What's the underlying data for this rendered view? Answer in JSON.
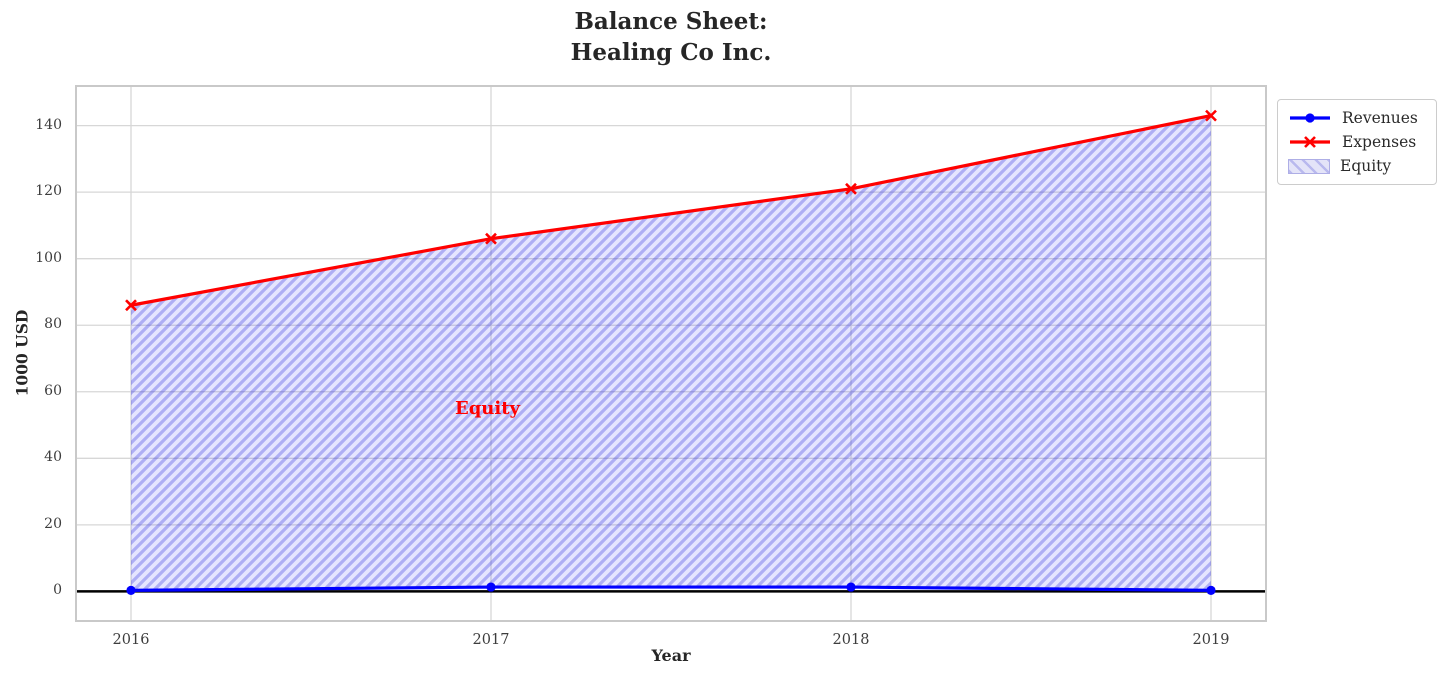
{
  "figure": {
    "title_line1": "Balance Sheet:",
    "title_line2": "Healing Co Inc.",
    "xlabel": "Year",
    "ylabel": "1000 USD"
  },
  "legend": {
    "position": "outside-upper-right",
    "items": [
      {
        "label": "Revenues",
        "type": "line",
        "marker": "circle",
        "color": "#0000ff"
      },
      {
        "label": "Expenses",
        "type": "line",
        "marker": "x",
        "color": "#ff0000"
      },
      {
        "label": "Equity",
        "type": "patch",
        "fill": "#e4e4f8",
        "hatch": "/",
        "hatch_color": "#b9b9ee"
      }
    ]
  },
  "chart_data": {
    "type": "line",
    "title": "Balance Sheet:\nHealing Co Inc.",
    "xlabel": "Year",
    "ylabel": "1000 USD",
    "x": [
      2016,
      2017,
      2018,
      2019
    ],
    "series": [
      {
        "name": "Revenues",
        "color": "#0000ff",
        "marker": "circle",
        "line_width": 3.2,
        "values": [
          0.3,
          1.3,
          1.3,
          0.3
        ]
      },
      {
        "name": "Expenses",
        "color": "#ff0000",
        "marker": "x",
        "line_width": 3.2,
        "values": [
          86,
          106,
          121,
          143
        ]
      }
    ],
    "fill_between": {
      "label": "Equity",
      "upper_series": "Expenses",
      "lower_series": "Revenues",
      "fill_color": "rgba(0,0,255,0.10)",
      "hatch": "/",
      "hatch_color": "rgba(45,45,220,0.30)"
    },
    "annotation": {
      "text": "Equity",
      "color": "#ff0000",
      "x": 2016.9,
      "y": 53
    },
    "zero_line": {
      "show": true,
      "color": "#000000"
    },
    "grid": true,
    "grid_color": "#d7d7d7",
    "xticks": [
      2016,
      2017,
      2018,
      2019
    ],
    "yticks": [
      0,
      20,
      40,
      60,
      80,
      100,
      120,
      140
    ],
    "xlim": [
      2015.85,
      2019.15
    ],
    "ylim": [
      -8.6,
      151.6
    ],
    "legend_entries": [
      "Revenues",
      "Expenses",
      "Equity"
    ]
  }
}
